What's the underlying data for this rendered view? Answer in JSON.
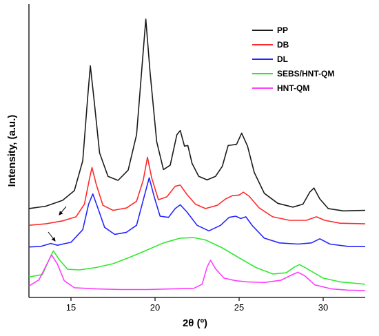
{
  "chart_data": {
    "type": "line",
    "title": "",
    "xlabel": "2θ (º)",
    "ylabel": "Intensity, (a.u.)",
    "xlim": [
      12.5,
      32.5
    ],
    "ylim": [
      0,
      100
    ],
    "xticks": [
      15,
      20,
      25,
      30
    ],
    "xtick_labels": [
      "15",
      "20",
      "25",
      "30"
    ],
    "y_ticks_shown": false,
    "grid": false,
    "legend_position": "top-right",
    "series": [
      {
        "name": "PP",
        "color": "#1a1a1a",
        "points": [
          [
            12.5,
            30.3
          ],
          [
            13.5,
            31.1
          ],
          [
            14.5,
            33.1
          ],
          [
            15.2,
            36.4
          ],
          [
            15.7,
            46.6
          ],
          [
            16.0,
            68.7
          ],
          [
            16.15,
            79.0
          ],
          [
            16.35,
            68.7
          ],
          [
            16.7,
            49.3
          ],
          [
            17.2,
            41.3
          ],
          [
            17.8,
            39.9
          ],
          [
            18.4,
            43.4
          ],
          [
            18.9,
            55.5
          ],
          [
            19.2,
            77.0
          ],
          [
            19.45,
            94.9
          ],
          [
            19.7,
            77.0
          ],
          [
            20.1,
            53.1
          ],
          [
            20.5,
            43.6
          ],
          [
            20.9,
            45.1
          ],
          [
            21.3,
            55.5
          ],
          [
            21.5,
            56.9
          ],
          [
            21.75,
            51.6
          ],
          [
            21.95,
            51.8
          ],
          [
            22.2,
            45.7
          ],
          [
            22.6,
            41.3
          ],
          [
            23.1,
            40.1
          ],
          [
            23.6,
            41.3
          ],
          [
            24.0,
            44.7
          ],
          [
            24.35,
            51.8
          ],
          [
            24.6,
            52.0
          ],
          [
            24.85,
            52.2
          ],
          [
            25.15,
            56.0
          ],
          [
            25.5,
            51.6
          ],
          [
            25.9,
            42.6
          ],
          [
            26.5,
            35.5
          ],
          [
            27.3,
            32.1
          ],
          [
            28.2,
            30.8
          ],
          [
            28.8,
            31.8
          ],
          [
            29.2,
            35.9
          ],
          [
            29.45,
            37.3
          ],
          [
            29.8,
            33.6
          ],
          [
            30.3,
            30.3
          ],
          [
            31.2,
            29.5
          ],
          [
            32.5,
            29.7
          ]
        ]
      },
      {
        "name": "DB",
        "color": "#ff2a2a",
        "points": [
          [
            12.5,
            24.6
          ],
          [
            13.5,
            25.1
          ],
          [
            14.5,
            26.1
          ],
          [
            15.3,
            27.5
          ],
          [
            15.8,
            31.8
          ],
          [
            16.1,
            40.4
          ],
          [
            16.25,
            44.3
          ],
          [
            16.5,
            38.6
          ],
          [
            16.9,
            31.4
          ],
          [
            17.5,
            29.7
          ],
          [
            18.3,
            30.5
          ],
          [
            18.9,
            32.8
          ],
          [
            19.3,
            40.0
          ],
          [
            19.55,
            47.8
          ],
          [
            19.8,
            40.8
          ],
          [
            20.2,
            33.3
          ],
          [
            20.7,
            34.3
          ],
          [
            21.2,
            37.9
          ],
          [
            21.5,
            38.3
          ],
          [
            21.9,
            35.1
          ],
          [
            22.4,
            31.8
          ],
          [
            23.0,
            30.3
          ],
          [
            23.7,
            31.4
          ],
          [
            24.2,
            33.6
          ],
          [
            24.6,
            34.7
          ],
          [
            25.0,
            34.9
          ],
          [
            25.25,
            35.9
          ],
          [
            25.6,
            34.5
          ],
          [
            26.2,
            30.5
          ],
          [
            27.0,
            27.5
          ],
          [
            28.0,
            26.3
          ],
          [
            29.0,
            26.3
          ],
          [
            29.6,
            27.5
          ],
          [
            30.1,
            26.3
          ],
          [
            31.0,
            25.3
          ],
          [
            32.5,
            25.1
          ]
        ]
      },
      {
        "name": "DL",
        "color": "#2424ff",
        "points": [
          [
            12.5,
            17.2
          ],
          [
            13.2,
            17.4
          ],
          [
            13.8,
            18.4
          ],
          [
            14.2,
            17.8
          ],
          [
            15.0,
            18.8
          ],
          [
            15.7,
            23.1
          ],
          [
            16.05,
            31.8
          ],
          [
            16.3,
            35.3
          ],
          [
            16.6,
            30.5
          ],
          [
            17.0,
            23.9
          ],
          [
            17.6,
            21.5
          ],
          [
            18.3,
            22.2
          ],
          [
            18.9,
            24.6
          ],
          [
            19.35,
            34.3
          ],
          [
            19.65,
            40.8
          ],
          [
            19.95,
            34.3
          ],
          [
            20.3,
            27.7
          ],
          [
            20.8,
            27.3
          ],
          [
            21.2,
            30.3
          ],
          [
            21.5,
            31.6
          ],
          [
            21.9,
            29.1
          ],
          [
            22.5,
            24.6
          ],
          [
            23.2,
            22.7
          ],
          [
            23.9,
            24.6
          ],
          [
            24.4,
            27.3
          ],
          [
            24.8,
            27.7
          ],
          [
            25.1,
            26.9
          ],
          [
            25.4,
            27.5
          ],
          [
            25.8,
            24.4
          ],
          [
            26.5,
            20.2
          ],
          [
            27.4,
            18.6
          ],
          [
            28.5,
            18.2
          ],
          [
            29.3,
            18.6
          ],
          [
            29.8,
            20.0
          ],
          [
            30.4,
            18.2
          ],
          [
            31.5,
            17.4
          ],
          [
            32.5,
            17.4
          ]
        ]
      },
      {
        "name": "SEBS/HNT-QM",
        "color": "#2fe82f",
        "points": [
          [
            12.5,
            7.0
          ],
          [
            13.3,
            7.8
          ],
          [
            13.7,
            12.9
          ],
          [
            13.95,
            15.9
          ],
          [
            14.3,
            12.9
          ],
          [
            14.8,
            9.6
          ],
          [
            15.5,
            9.4
          ],
          [
            16.5,
            10.2
          ],
          [
            17.5,
            11.5
          ],
          [
            18.5,
            13.7
          ],
          [
            19.5,
            16.1
          ],
          [
            20.5,
            18.6
          ],
          [
            21.5,
            20.2
          ],
          [
            22.3,
            20.4
          ],
          [
            23.0,
            19.6
          ],
          [
            24.0,
            16.9
          ],
          [
            25.0,
            13.5
          ],
          [
            26.0,
            10.2
          ],
          [
            27.0,
            8.0
          ],
          [
            27.8,
            8.4
          ],
          [
            28.3,
            10.4
          ],
          [
            28.6,
            11.2
          ],
          [
            29.1,
            9.6
          ],
          [
            30.0,
            6.6
          ],
          [
            31.0,
            5.3
          ],
          [
            32.5,
            4.5
          ]
        ]
      },
      {
        "name": "HNT-QM",
        "color": "#ff3dff",
        "points": [
          [
            12.5,
            3.9
          ],
          [
            13.1,
            6.0
          ],
          [
            13.5,
            10.6
          ],
          [
            13.85,
            14.5
          ],
          [
            14.2,
            11.3
          ],
          [
            14.6,
            5.7
          ],
          [
            15.2,
            3.3
          ],
          [
            16.5,
            2.9
          ],
          [
            18.0,
            2.7
          ],
          [
            19.5,
            2.7
          ],
          [
            21.0,
            2.9
          ],
          [
            22.3,
            3.1
          ],
          [
            22.8,
            4.5
          ],
          [
            23.1,
            10.4
          ],
          [
            23.3,
            12.7
          ],
          [
            23.6,
            9.8
          ],
          [
            24.1,
            6.6
          ],
          [
            24.8,
            5.7
          ],
          [
            25.5,
            5.3
          ],
          [
            26.5,
            5.1
          ],
          [
            27.5,
            5.9
          ],
          [
            28.1,
            7.6
          ],
          [
            28.5,
            8.6
          ],
          [
            28.9,
            7.4
          ],
          [
            29.5,
            4.3
          ],
          [
            30.5,
            2.9
          ],
          [
            31.5,
            2.5
          ],
          [
            32.5,
            2.3
          ]
        ]
      }
    ],
    "annotations": [
      "arrow-near-PP-14",
      "arrow-near-DL-14"
    ]
  }
}
